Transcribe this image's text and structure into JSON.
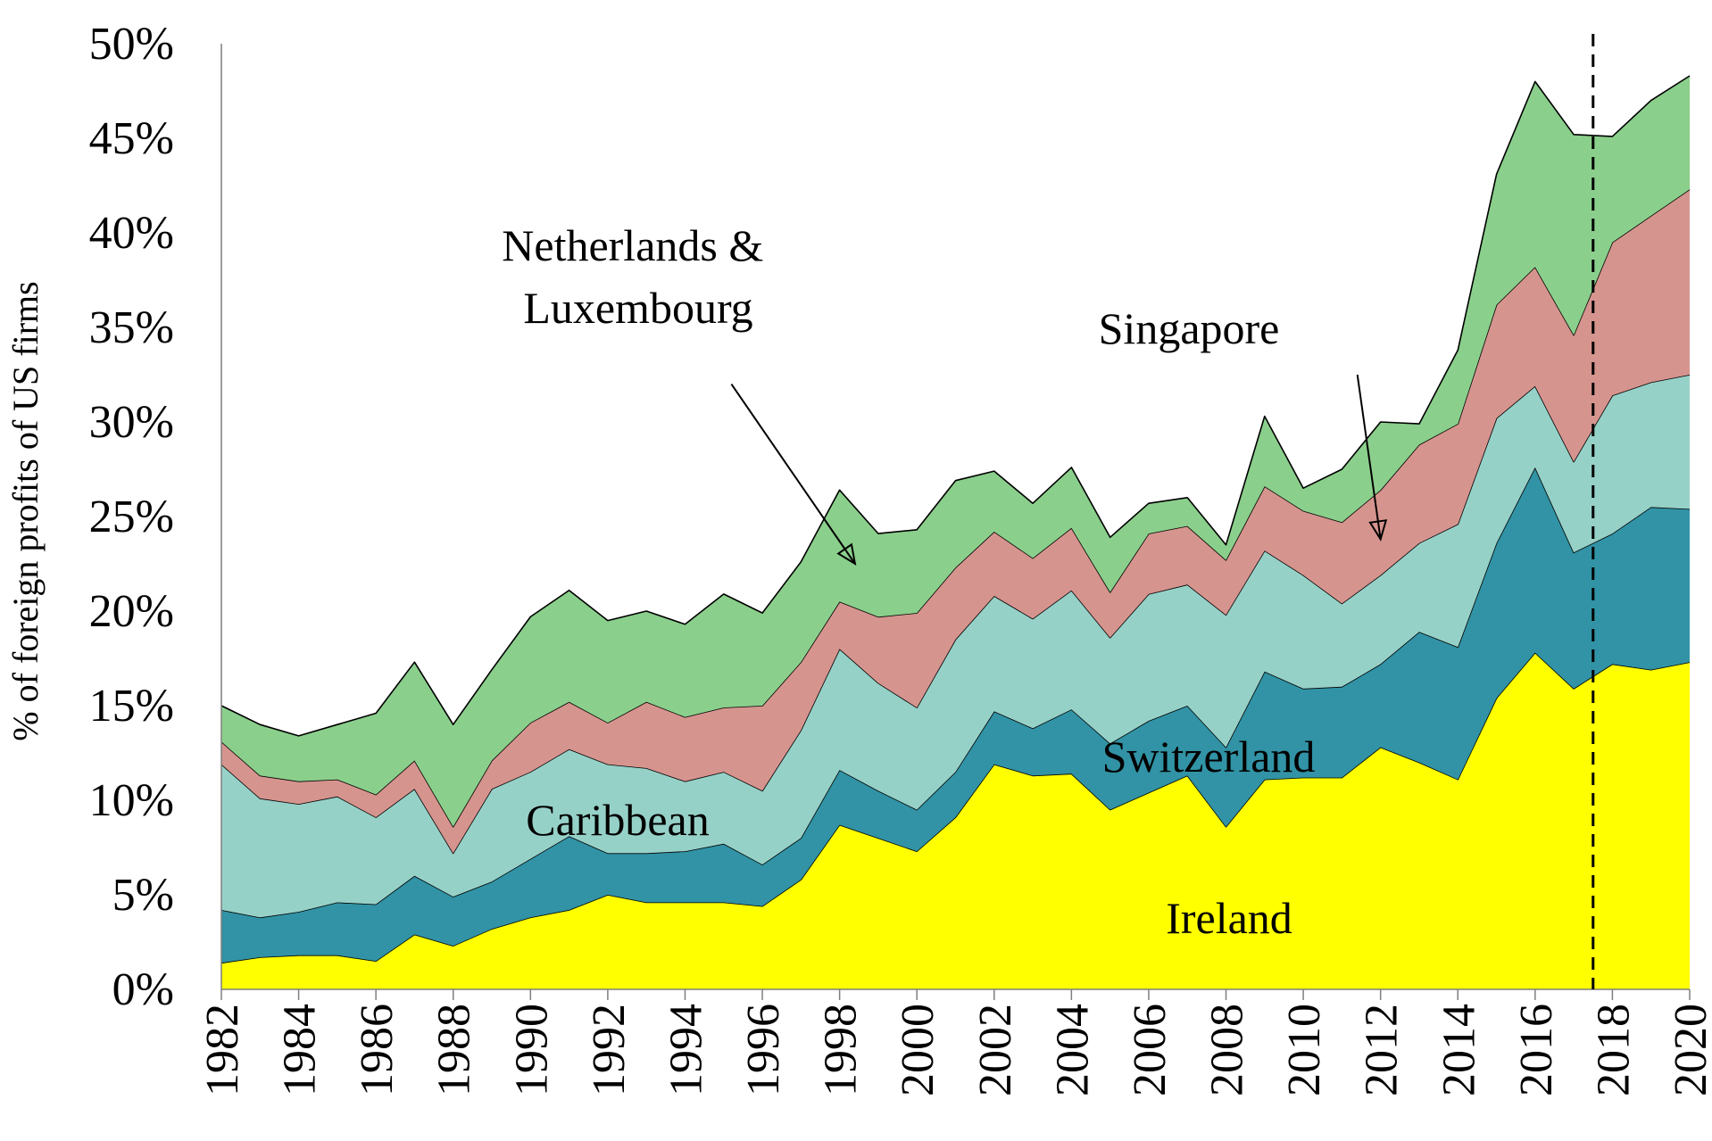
{
  "chart_data": {
    "type": "area",
    "stacked": true,
    "title": "",
    "xlabel": "",
    "ylabel": "% of foreign profits of US firms",
    "ylim": [
      0,
      50
    ],
    "yticks": [
      0,
      5,
      10,
      15,
      20,
      25,
      30,
      35,
      40,
      45,
      50
    ],
    "ytick_labels": [
      "0%",
      "5%",
      "10%",
      "15%",
      "20%",
      "25%",
      "30%",
      "35%",
      "40%",
      "45%",
      "50%"
    ],
    "xlim": [
      1982,
      2020
    ],
    "xticks": [
      1982,
      1984,
      1986,
      1988,
      1990,
      1992,
      1994,
      1996,
      1998,
      2000,
      2002,
      2004,
      2006,
      2008,
      2010,
      2012,
      2014,
      2016,
      2018,
      2020
    ],
    "xtick_labels": [
      "1982",
      "1984",
      "1986",
      "1988",
      "1990",
      "1992",
      "1994",
      "1996",
      "1998",
      "2000",
      "2002",
      "2004",
      "2006",
      "2008",
      "2010",
      "2012",
      "2014",
      "2016",
      "2018",
      "2020"
    ],
    "x": [
      1982,
      1983,
      1984,
      1985,
      1986,
      1987,
      1988,
      1989,
      1990,
      1991,
      1992,
      1993,
      1994,
      1995,
      1996,
      1997,
      1998,
      1999,
      2000,
      2001,
      2002,
      2003,
      2004,
      2005,
      2006,
      2007,
      2008,
      2009,
      2010,
      2011,
      2012,
      2013,
      2014,
      2015,
      2016,
      2017,
      2018,
      2019,
      2020
    ],
    "series": [
      {
        "name": "Ireland",
        "color": "#ffff00",
        "values": [
          1.4,
          1.7,
          1.8,
          1.8,
          1.5,
          2.9,
          2.3,
          3.2,
          3.8,
          4.2,
          5.0,
          4.6,
          4.6,
          4.6,
          4.4,
          5.8,
          8.7,
          8.0,
          7.3,
          9.1,
          11.9,
          11.3,
          11.4,
          9.5,
          10.4,
          11.3,
          8.6,
          11.1,
          11.2,
          11.2,
          12.8,
          12.0,
          11.1,
          15.4,
          17.8,
          15.9,
          17.2,
          16.9,
          17.3
        ]
      },
      {
        "name": "Switzerland",
        "color": "#3193a5",
        "values": [
          2.8,
          2.1,
          2.3,
          2.8,
          3.0,
          3.1,
          2.6,
          2.5,
          3.1,
          3.9,
          2.2,
          2.6,
          2.7,
          3.1,
          2.2,
          2.2,
          2.9,
          2.5,
          2.2,
          2.4,
          2.8,
          2.5,
          3.4,
          3.5,
          3.8,
          3.7,
          4.2,
          5.7,
          4.7,
          4.8,
          4.4,
          6.9,
          7.0,
          8.2,
          9.8,
          7.2,
          6.9,
          8.6,
          8.1
        ]
      },
      {
        "name": "Caribbean",
        "color": "#96d1c8",
        "values": [
          7.7,
          6.3,
          5.7,
          5.6,
          4.6,
          4.6,
          2.3,
          4.9,
          4.6,
          4.6,
          4.7,
          4.5,
          3.7,
          3.8,
          3.9,
          5.7,
          6.4,
          5.7,
          5.4,
          7.0,
          6.1,
          5.8,
          6.3,
          5.6,
          6.7,
          6.4,
          7.0,
          6.4,
          6.0,
          4.4,
          4.7,
          4.7,
          6.5,
          6.6,
          4.3,
          4.8,
          7.3,
          6.6,
          7.1
        ]
      },
      {
        "name": "Singapore",
        "color": "#d6948e",
        "values": [
          1.2,
          1.2,
          1.2,
          0.9,
          1.2,
          1.5,
          1.4,
          1.5,
          2.6,
          2.5,
          2.2,
          3.5,
          3.4,
          3.4,
          4.5,
          3.6,
          2.5,
          3.5,
          5.0,
          3.8,
          3.4,
          3.2,
          3.3,
          2.4,
          3.2,
          3.1,
          2.9,
          3.4,
          3.4,
          4.3,
          4.5,
          5.2,
          5.3,
          6.0,
          6.3,
          6.7,
          8.1,
          8.8,
          9.8
        ]
      },
      {
        "name": "Netherlands & Luxembourg",
        "color": "#8bcf8c",
        "values": [
          1.9,
          2.7,
          2.4,
          2.9,
          4.3,
          5.2,
          5.4,
          4.8,
          5.6,
          5.9,
          5.4,
          4.8,
          4.9,
          6.0,
          4.9,
          5.3,
          5.9,
          4.4,
          4.4,
          4.6,
          3.2,
          2.9,
          3.2,
          2.9,
          1.6,
          1.5,
          0.8,
          3.7,
          1.2,
          2.8,
          3.6,
          1.1,
          3.9,
          6.9,
          9.8,
          10.6,
          5.6,
          6.1,
          6.0
        ]
      }
    ],
    "annotations": [
      {
        "text_lines": [
          "Netherlands &",
          "Luxembourg"
        ],
        "arrow_from": [
          1995.2,
          32
        ],
        "arrow_to": [
          1998.4,
          22.5
        ]
      },
      {
        "text_lines": [
          "Singapore"
        ],
        "arrow_from": [
          2011.4,
          32.5
        ],
        "arrow_to": [
          2012.0,
          23.8
        ]
      },
      {
        "text_lines": [
          "Caribbean"
        ]
      },
      {
        "text_lines": [
          "Switzerland"
        ]
      },
      {
        "text_lines": [
          "Ireland"
        ]
      }
    ],
    "vertical_line": {
      "x": 2017.5,
      "style": "dashed"
    },
    "grid": false,
    "legend": "none"
  }
}
